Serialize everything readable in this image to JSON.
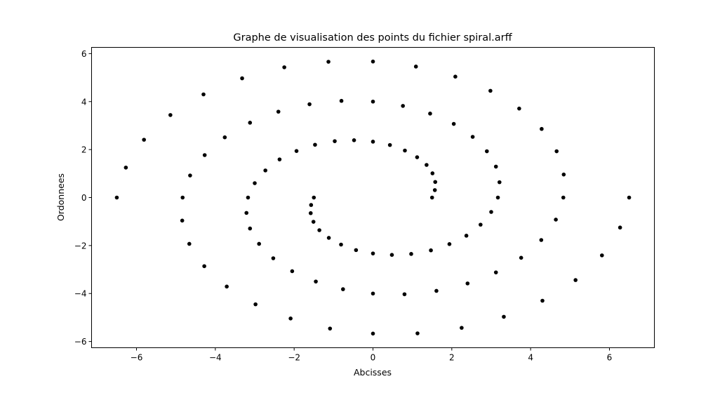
{
  "chart_data": {
    "type": "scatter",
    "title": "Graphe de visualisation des points du fichier spiral.arff",
    "xlabel": "Abcisses",
    "ylabel": "Ordonnees",
    "xlim": [
      -7.14,
      7.14
    ],
    "ylim": [
      -6.26,
      6.26
    ],
    "xticks": [
      -6,
      -4,
      -2,
      0,
      2,
      4,
      6
    ],
    "yticks": [
      -6,
      -4,
      -2,
      0,
      2,
      4,
      6
    ],
    "grid": false,
    "marker_color": "#000000",
    "series": [
      {
        "points": [
          [
            1.5,
            0.0
          ],
          [
            1.57,
            0.31
          ],
          [
            1.58,
            0.65
          ],
          [
            1.51,
            1.01
          ],
          [
            1.36,
            1.36
          ],
          [
            1.12,
            1.68
          ],
          [
            0.81,
            1.96
          ],
          [
            0.43,
            2.19
          ],
          [
            0.0,
            2.33
          ],
          [
            -0.48,
            2.39
          ],
          [
            -0.97,
            2.35
          ],
          [
            -1.47,
            2.2
          ],
          [
            -1.94,
            1.94
          ],
          [
            -2.37,
            1.59
          ],
          [
            -2.73,
            1.13
          ],
          [
            -3.0,
            0.6
          ],
          [
            -3.17,
            0.0
          ],
          [
            -3.21,
            -0.64
          ],
          [
            -3.12,
            -1.29
          ],
          [
            -2.89,
            -1.93
          ],
          [
            -2.53,
            -2.53
          ],
          [
            -2.05,
            -3.07
          ],
          [
            -1.45,
            -3.5
          ],
          [
            -0.76,
            -3.82
          ],
          [
            0.0,
            -4.0
          ],
          [
            0.8,
            -4.03
          ],
          [
            1.61,
            -3.89
          ],
          [
            2.4,
            -3.58
          ],
          [
            3.12,
            -3.12
          ],
          [
            3.76,
            -2.51
          ],
          [
            4.27,
            -1.77
          ],
          [
            4.64,
            -0.92
          ],
          [
            4.83,
            0.0
          ],
          [
            4.84,
            0.96
          ],
          [
            4.66,
            1.93
          ],
          [
            4.28,
            2.86
          ],
          [
            3.71,
            3.71
          ],
          [
            2.98,
            4.45
          ],
          [
            2.09,
            5.04
          ],
          [
            1.09,
            5.46
          ],
          [
            0.0,
            5.67
          ],
          [
            -1.13,
            5.66
          ],
          [
            -2.25,
            5.43
          ],
          [
            -3.32,
            4.97
          ],
          [
            -4.3,
            4.3
          ],
          [
            -5.14,
            3.44
          ],
          [
            -5.81,
            2.41
          ],
          [
            -6.27,
            1.25
          ],
          [
            -6.5,
            0.0
          ]
        ]
      },
      {
        "points": [
          [
            -1.5,
            0.0
          ],
          [
            -1.57,
            -0.31
          ],
          [
            -1.58,
            -0.65
          ],
          [
            -1.51,
            -1.01
          ],
          [
            -1.36,
            -1.36
          ],
          [
            -1.12,
            -1.68
          ],
          [
            -0.81,
            -1.96
          ],
          [
            -0.43,
            -2.19
          ],
          [
            0.0,
            -2.33
          ],
          [
            0.48,
            -2.39
          ],
          [
            0.97,
            -2.35
          ],
          [
            1.47,
            -2.2
          ],
          [
            1.94,
            -1.94
          ],
          [
            2.37,
            -1.59
          ],
          [
            2.73,
            -1.13
          ],
          [
            3.0,
            -0.6
          ],
          [
            3.17,
            0.0
          ],
          [
            3.21,
            0.64
          ],
          [
            3.12,
            1.29
          ],
          [
            2.89,
            1.93
          ],
          [
            2.53,
            2.53
          ],
          [
            2.05,
            3.07
          ],
          [
            1.45,
            3.5
          ],
          [
            0.76,
            3.82
          ],
          [
            0.0,
            4.0
          ],
          [
            -0.8,
            4.03
          ],
          [
            -1.61,
            3.89
          ],
          [
            -2.4,
            3.58
          ],
          [
            -3.12,
            3.12
          ],
          [
            -3.76,
            2.51
          ],
          [
            -4.27,
            1.77
          ],
          [
            -4.64,
            0.92
          ],
          [
            -4.83,
            0.0
          ],
          [
            -4.84,
            -0.96
          ],
          [
            -4.66,
            -1.93
          ],
          [
            -4.28,
            -2.86
          ],
          [
            -3.71,
            -3.71
          ],
          [
            -2.98,
            -4.45
          ],
          [
            -2.09,
            -5.04
          ],
          [
            -1.09,
            -5.46
          ],
          [
            0.0,
            -5.67
          ],
          [
            1.13,
            -5.66
          ],
          [
            2.25,
            -5.43
          ],
          [
            3.32,
            -4.97
          ],
          [
            4.3,
            -4.3
          ],
          [
            5.14,
            -3.44
          ],
          [
            5.81,
            -2.41
          ],
          [
            6.27,
            -1.25
          ],
          [
            6.5,
            0.0
          ]
        ]
      }
    ]
  }
}
